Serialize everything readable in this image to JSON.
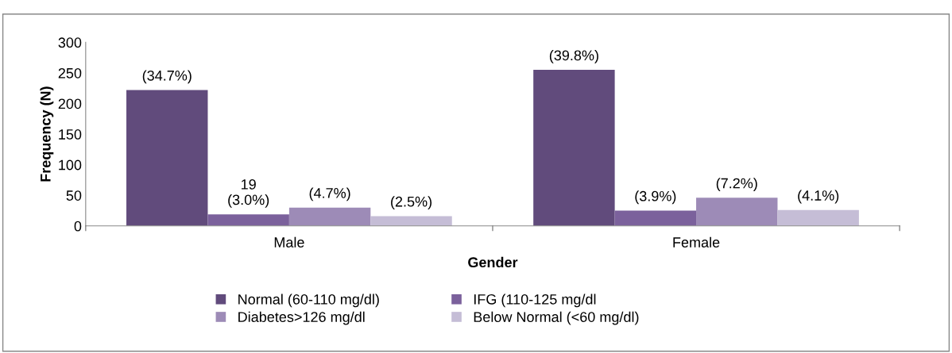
{
  "chart_data": {
    "type": "bar",
    "xlabel": "Gender",
    "ylabel": "Frequency (N)",
    "categories": [
      "Male",
      "Female"
    ],
    "series": [
      {
        "name": "Normal (60-110 mg/dl)",
        "color": "#614b7c",
        "values": [
          222,
          255
        ]
      },
      {
        "name": "IFG (110-125 mg/dl",
        "color": "#7b619c",
        "values": [
          19,
          25
        ]
      },
      {
        "name": "Diabetes>126 mg/dl",
        "color": "#9d8bb7",
        "values": [
          30,
          46
        ]
      },
      {
        "name": "Below Normal (<60 mg/dl)",
        "color": "#c5bdd6",
        "values": [
          16,
          26
        ]
      }
    ],
    "annotations": [
      "(34.7%)",
      "19\n(3.0%)",
      "(4.7%)",
      "(2.5%)",
      "(39.8%)",
      "(3.9%)",
      "(7.2%)",
      "(4.1%)"
    ],
    "ylim": [
      0,
      300
    ],
    "yticks": [
      0,
      50,
      100,
      150,
      200,
      250,
      300
    ],
    "grid": false,
    "legend": "bottom"
  }
}
